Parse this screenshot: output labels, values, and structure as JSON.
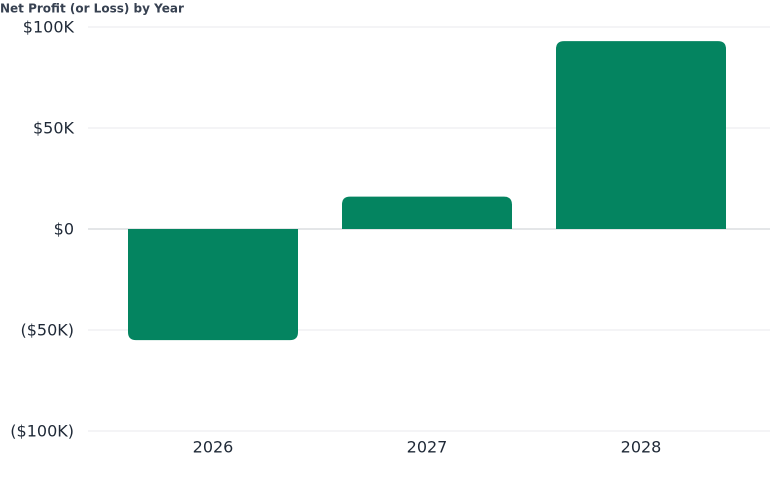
{
  "chart_data": {
    "type": "bar",
    "title": "Net Profit (or Loss) by Year",
    "categories": [
      "2026",
      "2027",
      "2028"
    ],
    "values": [
      -55000,
      16000,
      93000
    ],
    "color": "#048460",
    "ylim": [
      -100000,
      100000
    ],
    "yticks": [
      {
        "value": -100000,
        "label": "($100K)"
      },
      {
        "value": -50000,
        "label": "($50K)"
      },
      {
        "value": 0,
        "label": "$0"
      },
      {
        "value": 50000,
        "label": "$50K"
      },
      {
        "value": 100000,
        "label": "$100K"
      }
    ],
    "grid": true
  }
}
